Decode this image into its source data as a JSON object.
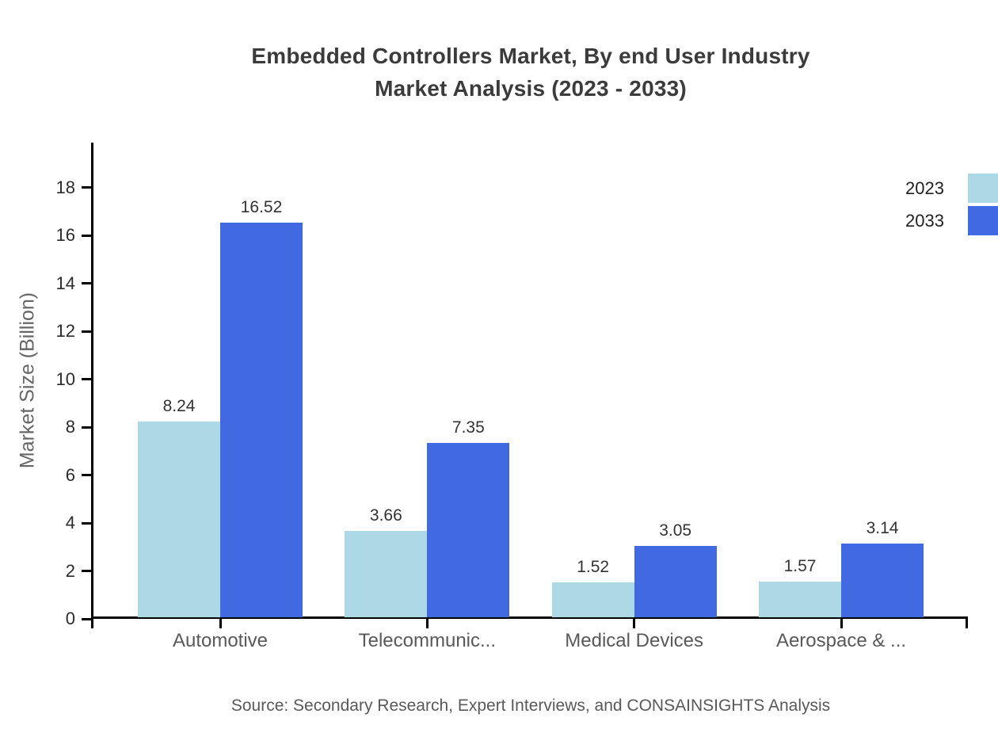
{
  "title": {
    "line1": "Embedded Controllers Market, By end User Industry",
    "line2": "Market Analysis (2023 - 2033)"
  },
  "source": "Source: Secondary Research, Expert Interviews, and CONSAINSIGHTS Analysis",
  "legend": {
    "items": [
      {
        "label": "2023",
        "color": "#ADD8E6"
      },
      {
        "label": "2033",
        "color": "#4169E1"
      }
    ]
  },
  "colors": {
    "series_2023": "#ADD8E6",
    "series_2033": "#4169E1",
    "axis": "#000000",
    "title_text": "#3b3b3b",
    "label_text": "#595959"
  },
  "chart_data": {
    "type": "bar",
    "title": "Embedded Controllers Market, By end User Industry Market Analysis (2023 - 2033)",
    "categories": [
      "Automotive",
      "Telecommunic...",
      "Medical Devices",
      "Aerospace & ..."
    ],
    "series": [
      {
        "name": "2023",
        "color": "#ADD8E6",
        "values": [
          8.24,
          3.66,
          1.52,
          1.57
        ]
      },
      {
        "name": "2033",
        "color": "#4169E1",
        "values": [
          16.52,
          7.35,
          3.05,
          3.14
        ]
      }
    ],
    "xlabel": "",
    "ylabel": "Market Size (Billion)",
    "yticks": [
      0,
      2,
      4,
      6,
      8,
      10,
      12,
      14,
      16,
      18
    ],
    "ylim": [
      0,
      19.8
    ],
    "grid": false,
    "legend_position": "top-right",
    "data_labels": true
  }
}
